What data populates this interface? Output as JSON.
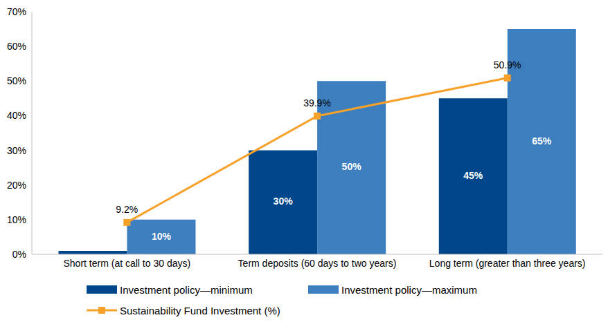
{
  "chart_data": {
    "type": "bar",
    "categories": [
      "Short term (at call to 30 days)",
      "Term deposits (60 days to two years)",
      "Long term (greater than three years)"
    ],
    "series": [
      {
        "name": "Investment policy—minimum",
        "color": "#00468B",
        "values": [
          1,
          30,
          45
        ],
        "value_labels": [
          null,
          "30%",
          "45%"
        ]
      },
      {
        "name": "Investment policy—maximum",
        "color": "#3D7EBF",
        "values": [
          10,
          50,
          65
        ],
        "value_labels": [
          "10%",
          "50%",
          "65%"
        ]
      },
      {
        "name": "Sustainability Fund Investment (%)",
        "type": "line",
        "color": "#F7A12A",
        "marker": "square",
        "values": [
          9.2,
          39.9,
          50.9
        ],
        "value_labels": [
          "9.2%",
          "39.9%",
          "50.9%"
        ]
      }
    ],
    "ylim": [
      0,
      70
    ],
    "yticks": [
      {
        "value": 0,
        "label": "0%"
      },
      {
        "value": 10,
        "label": "10%"
      },
      {
        "value": 20,
        "label": "20%"
      },
      {
        "value": 30,
        "label": "30%"
      },
      {
        "value": 40,
        "label": "40%"
      },
      {
        "value": 50,
        "label": "50%"
      },
      {
        "value": 60,
        "label": "60%"
      },
      {
        "value": 70,
        "label": "70%"
      }
    ],
    "grid": false,
    "legend": "bottom",
    "data_labels": true
  }
}
